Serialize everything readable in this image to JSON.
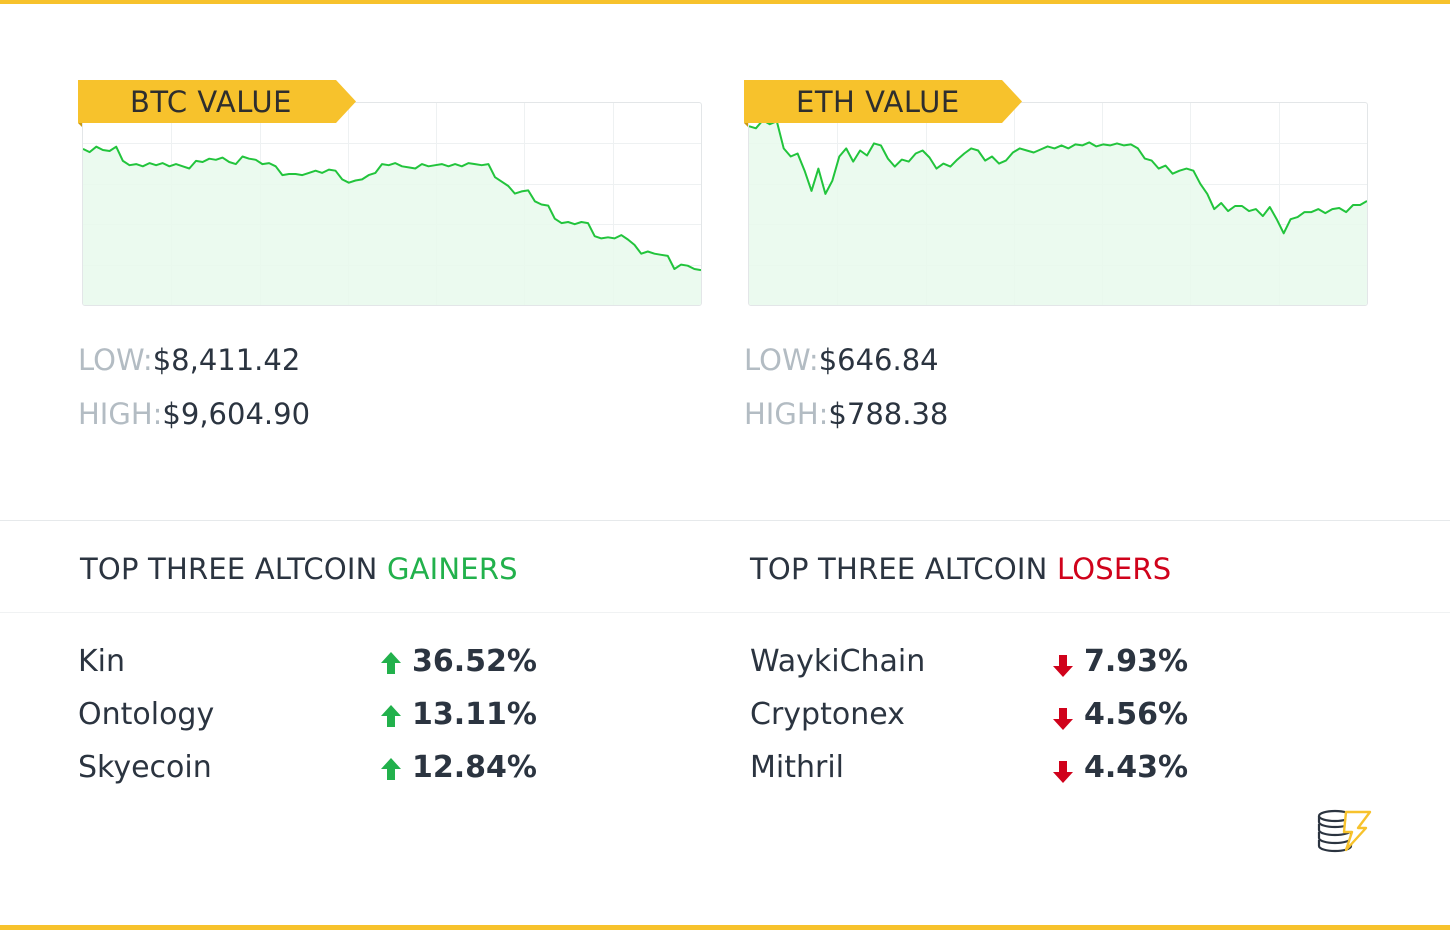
{
  "colors": {
    "accent": "#f7c22c",
    "line": "#22c43c",
    "fill": "#e8f9ec",
    "gain": "#22b14c",
    "loss": "#d0021b"
  },
  "btc": {
    "title": "BTC VALUE",
    "low_label": "LOW:",
    "low_value": "$8,411.42",
    "high_label": "HIGH:",
    "high_value": "$9,604.90"
  },
  "eth": {
    "title": "ETH VALUE",
    "low_label": "LOW:",
    "low_value": "$646.84",
    "high_label": "HIGH:",
    "high_value": "$788.38"
  },
  "gainers": {
    "title_prefix": "TOP THREE ALTCOIN ",
    "title_highlight": "GAINERS",
    "items": [
      {
        "name": "Kin",
        "change": "36.52%",
        "direction": "up"
      },
      {
        "name": "Ontology",
        "change": "13.11%",
        "direction": "up"
      },
      {
        "name": "Skyecoin",
        "change": "12.84%",
        "direction": "up"
      }
    ]
  },
  "losers": {
    "title_prefix": "TOP THREE ALTCOIN ",
    "title_highlight": "LOSERS",
    "items": [
      {
        "name": "WaykiChain",
        "change": "7.93%",
        "direction": "down"
      },
      {
        "name": "Cryptonex",
        "change": "4.56%",
        "direction": "down"
      },
      {
        "name": "Mithril",
        "change": "4.43%",
        "direction": "down"
      }
    ]
  },
  "logo_icon": "coin-stack-lightning-icon",
  "chart_data": [
    {
      "type": "area",
      "title": "BTC VALUE",
      "xlabel": "",
      "ylabel": "",
      "grid": true,
      "ylim": [
        8150,
        10000
      ],
      "low": 8411.42,
      "high": 9604.9,
      "values": [
        9580,
        9550,
        9600,
        9570,
        9560,
        9600,
        9470,
        9430,
        9440,
        9420,
        9450,
        9430,
        9450,
        9420,
        9440,
        9420,
        9400,
        9470,
        9460,
        9490,
        9480,
        9500,
        9460,
        9440,
        9510,
        9490,
        9480,
        9440,
        9450,
        9420,
        9340,
        9350,
        9350,
        9340,
        9360,
        9380,
        9360,
        9390,
        9380,
        9300,
        9270,
        9290,
        9300,
        9340,
        9360,
        9440,
        9430,
        9450,
        9420,
        9410,
        9400,
        9440,
        9420,
        9430,
        9440,
        9420,
        9440,
        9420,
        9450,
        9440,
        9430,
        9440,
        9320,
        9280,
        9240,
        9170,
        9190,
        9200,
        9100,
        9070,
        9060,
        8940,
        8900,
        8910,
        8890,
        8910,
        8900,
        8780,
        8760,
        8770,
        8760,
        8790,
        8750,
        8700,
        8620,
        8640,
        8620,
        8610,
        8600,
        8480,
        8520,
        8510,
        8480,
        8470
      ]
    },
    {
      "type": "area",
      "title": "ETH VALUE",
      "xlabel": "",
      "ylabel": "",
      "grid": true,
      "ylim": [
        605,
        805
      ],
      "low": 646.84,
      "high": 788.38,
      "values": [
        782,
        780,
        788,
        784,
        787,
        760,
        752,
        755,
        738,
        718,
        740,
        715,
        728,
        752,
        760,
        747,
        758,
        753,
        765,
        763,
        750,
        742,
        749,
        747,
        755,
        758,
        751,
        740,
        745,
        742,
        749,
        755,
        760,
        758,
        748,
        752,
        745,
        748,
        756,
        760,
        758,
        756,
        759,
        762,
        760,
        763,
        760,
        764,
        763,
        766,
        762,
        764,
        763,
        765,
        763,
        764,
        760,
        750,
        748,
        740,
        743,
        735,
        738,
        740,
        738,
        725,
        715,
        700,
        706,
        698,
        703,
        703,
        698,
        700,
        693,
        702,
        690,
        676,
        690,
        692,
        697,
        697,
        700,
        696,
        700,
        701,
        697,
        704,
        704,
        708
      ]
    }
  ]
}
